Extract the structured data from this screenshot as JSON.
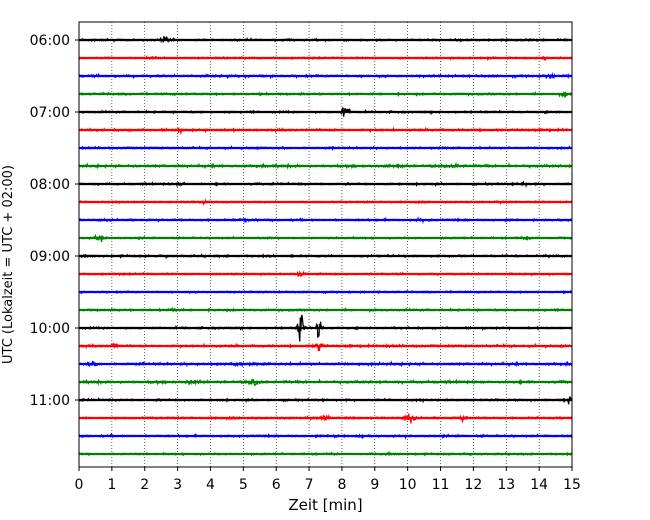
{
  "chart_data": {
    "type": "line",
    "title": "",
    "xlabel": "Zeit  [min]",
    "ylabel": "UTC (Lokalzeit = UTC + 02:00)",
    "xlim": [
      0,
      15
    ],
    "xticks": [
      0,
      1,
      2,
      3,
      4,
      5,
      6,
      7,
      8,
      9,
      10,
      11,
      12,
      13,
      14,
      15
    ],
    "ytick_labels": [
      "06:00",
      "07:00",
      "08:00",
      "09:00",
      "10:00",
      "11:00"
    ],
    "grid": "vertical dotted",
    "legend": "none",
    "line_colors": [
      "#000000",
      "#ff0000",
      "#0000ff",
      "#008000"
    ],
    "trace_interval_minutes": 15,
    "traces": [
      {
        "start": "06:00",
        "color": "#000000",
        "noise": 0.35,
        "events": [
          {
            "x": 2.6,
            "amp": 1.2
          }
        ]
      },
      {
        "start": "06:15",
        "color": "#ff0000",
        "noise": 0.3,
        "events": [
          {
            "x": 2.3,
            "amp": 0.8
          },
          {
            "x": 14.2,
            "amp": 0.9
          }
        ]
      },
      {
        "start": "06:30",
        "color": "#0000ff",
        "noise": 0.4,
        "events": [
          {
            "x": 14.3,
            "amp": 1.0
          }
        ]
      },
      {
        "start": "06:45",
        "color": "#008000",
        "noise": 0.35,
        "events": [
          {
            "x": 14.8,
            "amp": 0.8
          }
        ]
      },
      {
        "start": "07:00",
        "color": "#000000",
        "noise": 0.35,
        "events": [
          {
            "x": 8.1,
            "amp": 3.0
          }
        ]
      },
      {
        "start": "07:15",
        "color": "#ff0000",
        "noise": 0.4,
        "events": [
          {
            "x": 3.0,
            "amp": 0.8
          }
        ]
      },
      {
        "start": "07:30",
        "color": "#0000ff",
        "noise": 0.35,
        "events": []
      },
      {
        "start": "07:45",
        "color": "#008000",
        "noise": 0.45,
        "events": [
          {
            "x": 9.8,
            "amp": 0.8
          },
          {
            "x": 11.5,
            "amp": 0.8
          }
        ]
      },
      {
        "start": "08:00",
        "color": "#000000",
        "noise": 0.35,
        "events": [
          {
            "x": 3.1,
            "amp": 0.9
          },
          {
            "x": 13.5,
            "amp": 0.7
          }
        ]
      },
      {
        "start": "08:15",
        "color": "#ff0000",
        "noise": 0.3,
        "events": [
          {
            "x": 3.8,
            "amp": 0.6
          }
        ]
      },
      {
        "start": "08:30",
        "color": "#0000ff",
        "noise": 0.35,
        "events": [
          {
            "x": 5.0,
            "amp": 0.7
          },
          {
            "x": 10.4,
            "amp": 0.6
          }
        ]
      },
      {
        "start": "08:45",
        "color": "#008000",
        "noise": 0.3,
        "events": [
          {
            "x": 0.6,
            "amp": 1.3
          },
          {
            "x": 13.7,
            "amp": 0.8
          }
        ]
      },
      {
        "start": "09:00",
        "color": "#000000",
        "noise": 0.35,
        "events": []
      },
      {
        "start": "09:15",
        "color": "#ff0000",
        "noise": 0.3,
        "events": [
          {
            "x": 6.7,
            "amp": 0.6
          }
        ]
      },
      {
        "start": "09:30",
        "color": "#0000ff",
        "noise": 0.3,
        "events": []
      },
      {
        "start": "09:45",
        "color": "#008000",
        "noise": 0.35,
        "events": [
          {
            "x": 2.9,
            "amp": 0.8
          }
        ]
      },
      {
        "start": "10:00",
        "color": "#000000",
        "noise": 0.35,
        "events": [
          {
            "x": 6.75,
            "amp": 13.0
          },
          {
            "x": 7.3,
            "amp": 6.5
          }
        ]
      },
      {
        "start": "10:15",
        "color": "#ff0000",
        "noise": 0.4,
        "events": [
          {
            "x": 1.05,
            "amp": 1.5
          },
          {
            "x": 7.3,
            "amp": 2.2
          }
        ]
      },
      {
        "start": "10:30",
        "color": "#0000ff",
        "noise": 0.45,
        "events": [
          {
            "x": 0.4,
            "amp": 0.9
          },
          {
            "x": 4.8,
            "amp": 0.7
          }
        ]
      },
      {
        "start": "10:45",
        "color": "#008000",
        "noise": 0.45,
        "events": [
          {
            "x": 3.4,
            "amp": 0.9
          },
          {
            "x": 5.3,
            "amp": 1.3
          }
        ]
      },
      {
        "start": "11:00",
        "color": "#000000",
        "noise": 0.35,
        "events": [
          {
            "x": 14.9,
            "amp": 1.3
          }
        ]
      },
      {
        "start": "11:15",
        "color": "#ff0000",
        "noise": 0.35,
        "events": [
          {
            "x": 7.5,
            "amp": 1.0
          },
          {
            "x": 10.05,
            "amp": 1.8
          },
          {
            "x": 11.7,
            "amp": 0.8
          }
        ]
      },
      {
        "start": "11:30",
        "color": "#0000ff",
        "noise": 0.35,
        "events": [
          {
            "x": 7.8,
            "amp": 0.7
          },
          {
            "x": 8.6,
            "amp": 0.6
          }
        ]
      },
      {
        "start": "11:45",
        "color": "#008000",
        "noise": 0.3,
        "events": []
      }
    ]
  }
}
